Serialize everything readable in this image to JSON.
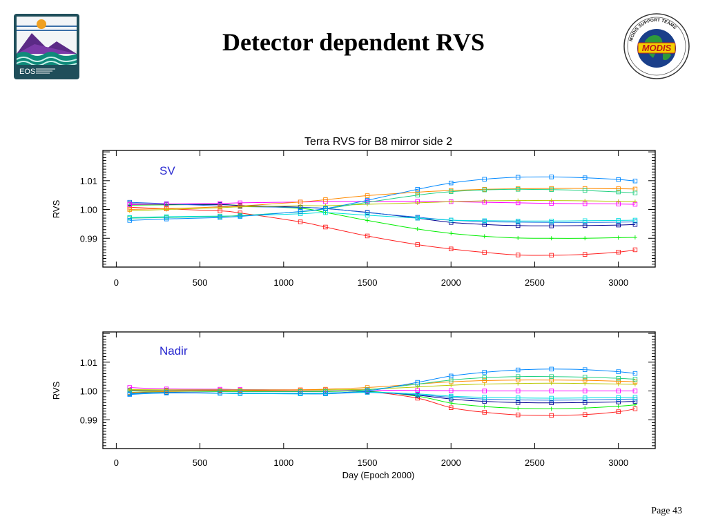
{
  "slide": {
    "title": "Detector dependent RVS",
    "page_label": "Page 43",
    "logos": {
      "eos_text": "EOS",
      "modis_text": "MODIS",
      "modis_ring_text": "MODIS SUPPORT TEAMS"
    }
  },
  "chart_data": [
    {
      "type": "line",
      "title": "Terra RVS for B8 mirror side 2",
      "panel_label": "SV",
      "xlabel": "",
      "ylabel": "RVS",
      "xlim": [
        -80,
        3220
      ],
      "ylim": [
        0.98,
        1.0205
      ],
      "xticks": [
        0,
        500,
        1000,
        1500,
        2000,
        2500,
        3000
      ],
      "yticks": [
        0.99,
        1.0,
        1.01
      ],
      "ytick_labels": [
        "0.99",
        "1.00",
        "1.01"
      ],
      "x": [
        80,
        300,
        620,
        740,
        1100,
        1250,
        1500,
        1800,
        2000,
        2200,
        2400,
        2600,
        2800,
        3000,
        3100
      ],
      "series": [
        {
          "color": "#ff2020",
          "marker": "square",
          "values": [
            1.0008,
            1.0002,
            0.9995,
            0.9988,
            0.9957,
            0.9939,
            0.9908,
            0.9878,
            0.9863,
            0.9851,
            0.9842,
            0.9841,
            0.9844,
            0.9852,
            0.986
          ]
        },
        {
          "color": "#00ee00",
          "marker": "plus",
          "values": [
            1.0015,
            1.0016,
            1.0017,
            1.0014,
            1.0004,
            0.999,
            0.9962,
            0.9932,
            0.9917,
            0.9907,
            0.9901,
            0.99,
            0.99,
            0.9902,
            0.9903
          ]
        },
        {
          "color": "#000090",
          "marker": "square",
          "values": [
            1.002,
            1.0018,
            1.0017,
            1.0014,
            1.0008,
            1.0003,
            0.999,
            0.997,
            0.9955,
            0.9948,
            0.9944,
            0.9943,
            0.9944,
            0.9946,
            0.9948
          ]
        },
        {
          "color": "#1e6fe0",
          "marker": "square",
          "values": [
            1.0025,
            1.002,
            1.0012,
            1.001,
            1.0007,
            1.0004,
            0.9989,
            0.9973,
            0.9963,
            0.9958,
            0.9956,
            0.9955,
            0.9955,
            0.9956,
            0.9957
          ]
        },
        {
          "color": "#00e0e0",
          "marker": "square",
          "values": [
            0.9972,
            0.9975,
            0.9977,
            0.9978,
            0.9985,
            0.9989,
            0.998,
            0.997,
            0.9963,
            0.9961,
            0.996,
            0.996,
            0.9961,
            0.9962,
            0.9963
          ]
        },
        {
          "color": "#ff00ff",
          "marker": "square",
          "values": [
            1.0017,
            1.0019,
            1.0021,
            1.0023,
            1.0026,
            1.0027,
            1.0028,
            1.0028,
            1.0027,
            1.0025,
            1.0023,
            1.0021,
            1.002,
            1.0019,
            1.0018
          ]
        },
        {
          "color": "#b8c800",
          "marker": "plus",
          "values": [
            0.9995,
            1.0,
            1.0006,
            1.0009,
            1.0013,
            1.0013,
            1.0018,
            1.0023,
            1.0027,
            1.003,
            1.0031,
            1.0031,
            1.003,
            1.0028,
            1.0027
          ]
        },
        {
          "color": "#ff8a00",
          "marker": "square",
          "values": [
            1.0,
            1.0003,
            1.0009,
            1.0012,
            1.0026,
            1.0034,
            1.0048,
            1.006,
            1.0066,
            1.007,
            1.0072,
            1.0073,
            1.0073,
            1.0072,
            1.0071
          ]
        },
        {
          "color": "#20d080",
          "marker": "square",
          "values": [
            0.997,
            0.9972,
            0.9976,
            0.9979,
            0.9992,
            1.0002,
            1.0025,
            1.005,
            1.0062,
            1.0068,
            1.007,
            1.0069,
            1.0066,
            1.0061,
            1.0057
          ]
        },
        {
          "color": "#0088ff",
          "marker": "square",
          "values": [
            0.9962,
            0.9967,
            0.9972,
            0.9976,
            0.9993,
            1.0003,
            1.0032,
            1.007,
            1.0092,
            1.0105,
            1.0112,
            1.0113,
            1.011,
            1.0104,
            1.0099
          ]
        }
      ]
    },
    {
      "type": "line",
      "title": "",
      "panel_label": "Nadir",
      "xlabel": "Day (Epoch 2000)",
      "ylabel": "RVS",
      "xlim": [
        -80,
        3220
      ],
      "ylim": [
        0.98,
        1.0205
      ],
      "xticks": [
        0,
        500,
        1000,
        1500,
        2000,
        2500,
        3000
      ],
      "yticks": [
        0.99,
        1.0,
        1.01
      ],
      "ytick_labels": [
        "0.99",
        "1.00",
        "1.01"
      ],
      "x": [
        80,
        300,
        620,
        740,
        1100,
        1250,
        1500,
        1800,
        2000,
        2200,
        2400,
        2600,
        2800,
        3000,
        3100
      ],
      "series": [
        {
          "color": "#ff2020",
          "marker": "square",
          "values": [
            1.0003,
            1.0003,
            1.0002,
            1.0001,
            1.0,
            1.0,
            0.9998,
            0.9975,
            0.9942,
            0.9926,
            0.9917,
            0.9915,
            0.9918,
            0.9928,
            0.9938
          ]
        },
        {
          "color": "#00ee00",
          "marker": "plus",
          "values": [
            1.0,
            0.9999,
            0.9998,
            0.9998,
            0.9998,
            0.9998,
            0.9999,
            0.9982,
            0.9958,
            0.9946,
            0.994,
            0.9938,
            0.9941,
            0.9947,
            0.9952
          ]
        },
        {
          "color": "#000090",
          "marker": "square",
          "values": [
            0.9993,
            0.9995,
            0.9993,
            0.9992,
            0.9991,
            0.9991,
            0.9997,
            0.9985,
            0.9972,
            0.9964,
            0.996,
            0.9959,
            0.996,
            0.9962,
            0.9964
          ]
        },
        {
          "color": "#1e6fe0",
          "marker": "square",
          "values": [
            0.999,
            0.9994,
            0.9992,
            0.9991,
            0.999,
            0.999,
            0.9995,
            0.9987,
            0.9978,
            0.9972,
            0.9969,
            0.9968,
            0.9969,
            0.9971,
            0.9972
          ]
        },
        {
          "color": "#00e0e0",
          "marker": "square",
          "values": [
            0.9992,
            0.9994,
            0.9992,
            0.9991,
            0.999,
            0.9991,
            0.9996,
            0.999,
            0.9982,
            0.9978,
            0.9976,
            0.9975,
            0.9976,
            0.9977,
            0.9978
          ]
        },
        {
          "color": "#ff00ff",
          "marker": "square",
          "values": [
            1.0012,
            1.0007,
            1.0006,
            1.0005,
            1.0004,
            1.0004,
            1.0003,
            1.0002,
            1.0001,
            1.0,
            1.0,
            1.0,
            1.0,
            1.0,
            1.0
          ]
        },
        {
          "color": "#b8c800",
          "marker": "plus",
          "values": [
            1.0005,
            1.0004,
            1.0004,
            1.0004,
            1.0004,
            1.0004,
            1.0006,
            1.0014,
            1.002,
            1.0024,
            1.0026,
            1.0027,
            1.0026,
            1.0024,
            1.0023
          ]
        },
        {
          "color": "#ff8a00",
          "marker": "square",
          "values": [
            0.9995,
            0.9998,
            1.0,
            1.0002,
            1.0004,
            1.0006,
            1.0012,
            1.0024,
            1.0032,
            1.0036,
            1.0038,
            1.0038,
            1.0037,
            1.0034,
            1.0032
          ]
        },
        {
          "color": "#20d080",
          "marker": "square",
          "values": [
            1.0001,
            1.0,
            0.9999,
            0.9999,
            0.9998,
            0.9999,
            1.0004,
            1.0024,
            1.0038,
            1.0046,
            1.005,
            1.005,
            1.0048,
            1.0044,
            1.0041
          ]
        },
        {
          "color": "#0088ff",
          "marker": "square",
          "values": [
            0.9988,
            0.9993,
            0.9993,
            0.9993,
            0.9992,
            0.9993,
            1.0,
            1.003,
            1.0052,
            1.0065,
            1.0073,
            1.0076,
            1.0074,
            1.0067,
            1.0061
          ]
        }
      ]
    }
  ]
}
